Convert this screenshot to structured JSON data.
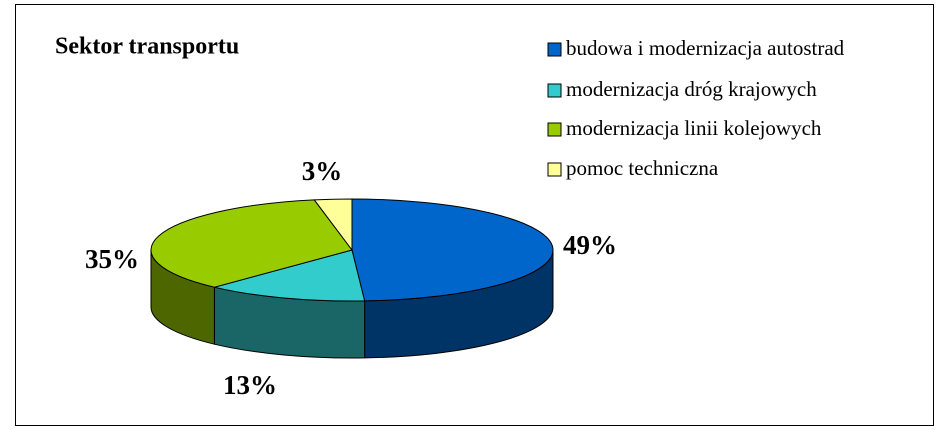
{
  "chart_data": {
    "type": "pie",
    "title": "Sektor transportu",
    "categories": [
      "budowa i modernizacja autostrad",
      "modernizacja dróg krajowych",
      "modernizacja linii kolejowych",
      "pomoc techniczna"
    ],
    "values": [
      49,
      13,
      35,
      3
    ],
    "value_labels": [
      "49%",
      "13%",
      "35%",
      "3%"
    ],
    "colors": [
      "#0066cc",
      "#33cccc",
      "#99cc00",
      "#ffff99"
    ],
    "legend": "right"
  }
}
